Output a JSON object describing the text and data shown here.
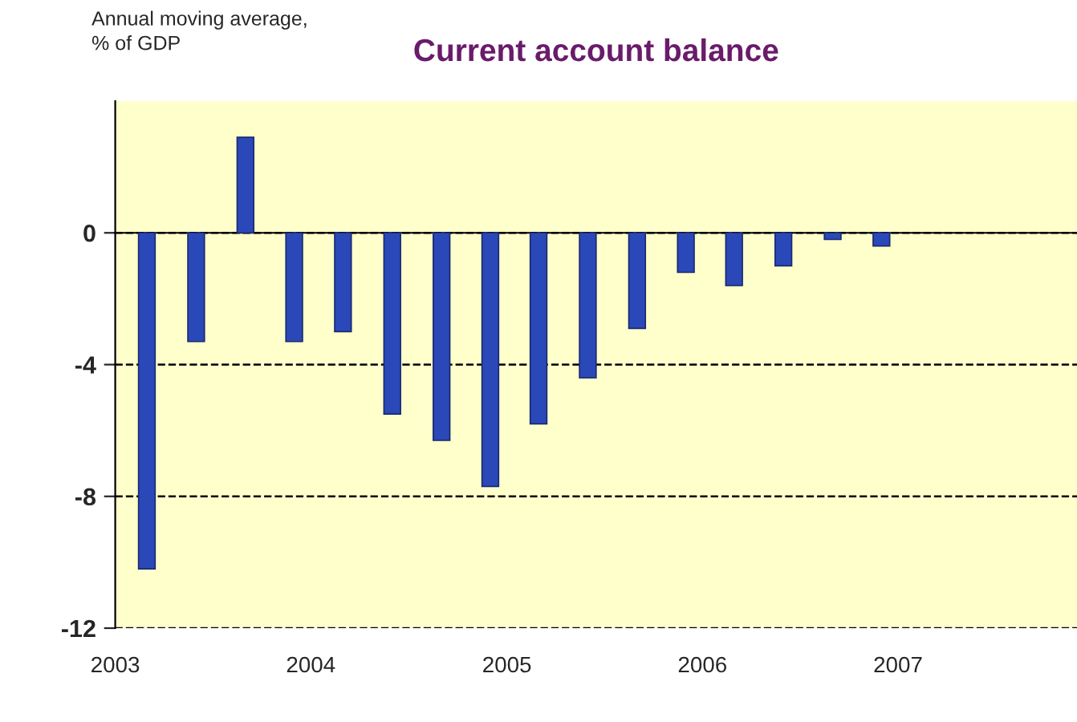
{
  "chart_data": {
    "type": "bar",
    "title": "Current account balance",
    "ylabel": "Annual moving average,\n% of GDP",
    "x": [
      "2003-03",
      "2003-06",
      "2003-09",
      "2003-12",
      "2004-03",
      "2004-06",
      "2004-09",
      "2004-12",
      "2005-03",
      "2005-06",
      "2005-09",
      "2005-12",
      "2006-03",
      "2006-06",
      "2006-09",
      "2006-12"
    ],
    "series": [
      {
        "color": "#2a48b8",
        "values": [
          -10.2,
          -3.3,
          2.9,
          -3.3,
          -3.0,
          -5.5,
          -6.3,
          -7.7,
          -5.8,
          -4.4,
          -2.9,
          -1.2,
          -1.6,
          -1.0,
          -0.2,
          -0.4
        ]
      }
    ],
    "ylim": [
      -12,
      4
    ],
    "yticks": [
      0,
      -4,
      -8,
      -12
    ],
    "xlim": [
      "2003",
      "2007-12"
    ],
    "xticks": [
      "2003",
      "2004",
      "2005",
      "2006",
      "2007"
    ],
    "grid": "y",
    "line_style": "dashed"
  }
}
